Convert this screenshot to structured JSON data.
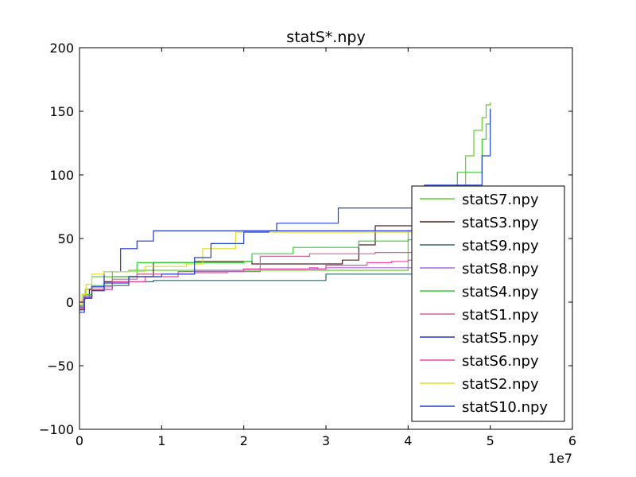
{
  "chart_data": {
    "type": "line",
    "title": "statS*.npy",
    "xlabel": "",
    "ylabel": "",
    "xlim": [
      0,
      60000000
    ],
    "ylim": [
      -100,
      200
    ],
    "x_ticks": [
      0,
      10000000,
      20000000,
      30000000,
      40000000,
      50000000,
      60000000
    ],
    "x_tick_labels": [
      "0",
      "1",
      "2",
      "3",
      "4",
      "5",
      "6"
    ],
    "x_offset_label": "1e7",
    "y_ticks": [
      -100,
      -50,
      0,
      50,
      100,
      150,
      200
    ],
    "y_tick_labels": [
      "−100",
      "−50",
      "0",
      "50",
      "100",
      "150",
      "200"
    ],
    "grid": false,
    "legend_position": "lower-right",
    "series": [
      {
        "name": "statS7.npy",
        "color": "#66cc33",
        "points": [
          [
            0,
            -6
          ],
          [
            300000,
            2
          ],
          [
            700000,
            10
          ],
          [
            1500000,
            20
          ],
          [
            4000000,
            24
          ],
          [
            6000000,
            25
          ],
          [
            12000000,
            25
          ],
          [
            20000000,
            25
          ],
          [
            30000000,
            25
          ],
          [
            40000000,
            56
          ],
          [
            42000000,
            56
          ],
          [
            46000000,
            90
          ],
          [
            47000000,
            115
          ],
          [
            48000000,
            135
          ],
          [
            49000000,
            145
          ],
          [
            49500000,
            155
          ],
          [
            50000000,
            157
          ]
        ]
      },
      {
        "name": "statS3.npy",
        "color": "#4d2222",
        "points": [
          [
            0,
            -4
          ],
          [
            500000,
            3
          ],
          [
            1200000,
            10
          ],
          [
            3000000,
            16
          ],
          [
            6000000,
            20
          ],
          [
            9000000,
            31
          ],
          [
            14000000,
            32
          ],
          [
            21000000,
            30
          ],
          [
            32000000,
            33
          ],
          [
            34000000,
            45
          ],
          [
            36000000,
            60
          ],
          [
            42000000,
            60
          ],
          [
            46000000,
            60
          ],
          [
            50000000,
            60
          ]
        ]
      },
      {
        "name": "statS9.npy",
        "color": "#336666",
        "points": [
          [
            0,
            -5
          ],
          [
            500000,
            3
          ],
          [
            1500000,
            9
          ],
          [
            3000000,
            13
          ],
          [
            6000000,
            16
          ],
          [
            9000000,
            17
          ],
          [
            14000000,
            17
          ],
          [
            29000000,
            17
          ],
          [
            30000000,
            22
          ],
          [
            35000000,
            22
          ],
          [
            42000000,
            23
          ],
          [
            50000000,
            23
          ]
        ]
      },
      {
        "name": "statS8.npy",
        "color": "#aa66dd",
        "points": [
          [
            0,
            -4
          ],
          [
            500000,
            5
          ],
          [
            1500000,
            12
          ],
          [
            4000000,
            20
          ],
          [
            7000000,
            22
          ],
          [
            14000000,
            25
          ],
          [
            20000000,
            26
          ],
          [
            30000000,
            27
          ],
          [
            40000000,
            27
          ],
          [
            50000000,
            27
          ]
        ]
      },
      {
        "name": "statS4.npy",
        "color": "#33cc33",
        "points": [
          [
            0,
            -3
          ],
          [
            500000,
            6
          ],
          [
            1500000,
            13
          ],
          [
            4000000,
            20
          ],
          [
            7000000,
            31
          ],
          [
            14000000,
            31
          ],
          [
            20000000,
            32
          ],
          [
            21000000,
            38
          ],
          [
            26000000,
            43
          ],
          [
            34000000,
            48
          ],
          [
            40000000,
            49
          ],
          [
            41000000,
            56
          ],
          [
            46000000,
            102
          ],
          [
            48500000,
            102
          ],
          [
            49000000,
            128
          ],
          [
            49500000,
            140
          ],
          [
            50000000,
            152
          ]
        ]
      },
      {
        "name": "statS1.npy",
        "color": "#cc6699",
        "points": [
          [
            0,
            -5
          ],
          [
            500000,
            3
          ],
          [
            1500000,
            10
          ],
          [
            4000000,
            18
          ],
          [
            7000000,
            22
          ],
          [
            14000000,
            23
          ],
          [
            18000000,
            24
          ],
          [
            22000000,
            36
          ],
          [
            28000000,
            38
          ],
          [
            36000000,
            39
          ],
          [
            42000000,
            39
          ],
          [
            50000000,
            39
          ]
        ]
      },
      {
        "name": "statS5.npy",
        "color": "#2233cc",
        "points": [
          [
            0,
            -8
          ],
          [
            600000,
            4
          ],
          [
            1500000,
            12
          ],
          [
            3000000,
            24
          ],
          [
            5000000,
            42
          ],
          [
            7000000,
            48
          ],
          [
            9000000,
            56
          ],
          [
            17000000,
            56
          ],
          [
            22000000,
            56
          ],
          [
            28000000,
            56
          ],
          [
            36000000,
            56
          ],
          [
            42000000,
            56
          ],
          [
            46000000,
            56
          ],
          [
            50000000,
            56
          ]
        ]
      },
      {
        "name": "statS6.npy",
        "color": "#ee44aa",
        "points": [
          [
            0,
            -5
          ],
          [
            500000,
            4
          ],
          [
            1500000,
            10
          ],
          [
            4000000,
            16
          ],
          [
            8000000,
            20
          ],
          [
            12000000,
            24
          ],
          [
            20000000,
            26
          ],
          [
            28000000,
            27
          ],
          [
            29000000,
            26
          ],
          [
            30000000,
            29
          ],
          [
            35000000,
            31
          ],
          [
            38000000,
            32
          ],
          [
            40000000,
            33
          ],
          [
            45000000,
            36
          ],
          [
            50000000,
            36
          ]
        ]
      },
      {
        "name": "statS2.npy",
        "color": "#dddd22",
        "points": [
          [
            0,
            -2
          ],
          [
            300000,
            6
          ],
          [
            800000,
            14
          ],
          [
            1500000,
            22
          ],
          [
            3000000,
            24
          ],
          [
            8000000,
            28
          ],
          [
            13000000,
            30
          ],
          [
            15000000,
            42
          ],
          [
            19000000,
            55
          ],
          [
            22000000,
            55
          ],
          [
            30000000,
            55
          ],
          [
            42000000,
            55
          ],
          [
            50000000,
            55
          ]
        ]
      },
      {
        "name": "statS10.npy",
        "color": "#2244cc",
        "points": [
          [
            0,
            -6
          ],
          [
            600000,
            3
          ],
          [
            1500000,
            9
          ],
          [
            3000000,
            15
          ],
          [
            6000000,
            20
          ],
          [
            10000000,
            22
          ],
          [
            14000000,
            35
          ],
          [
            16000000,
            46
          ],
          [
            20000000,
            55
          ],
          [
            23000000,
            56
          ],
          [
            24000000,
            62
          ],
          [
            31000000,
            62
          ],
          [
            31500000,
            74
          ],
          [
            35000000,
            74
          ],
          [
            42000000,
            92
          ],
          [
            46000000,
            92
          ],
          [
            48500000,
            92
          ],
          [
            49000000,
            115
          ],
          [
            50000000,
            120
          ],
          [
            50000000,
            152
          ]
        ]
      }
    ]
  }
}
